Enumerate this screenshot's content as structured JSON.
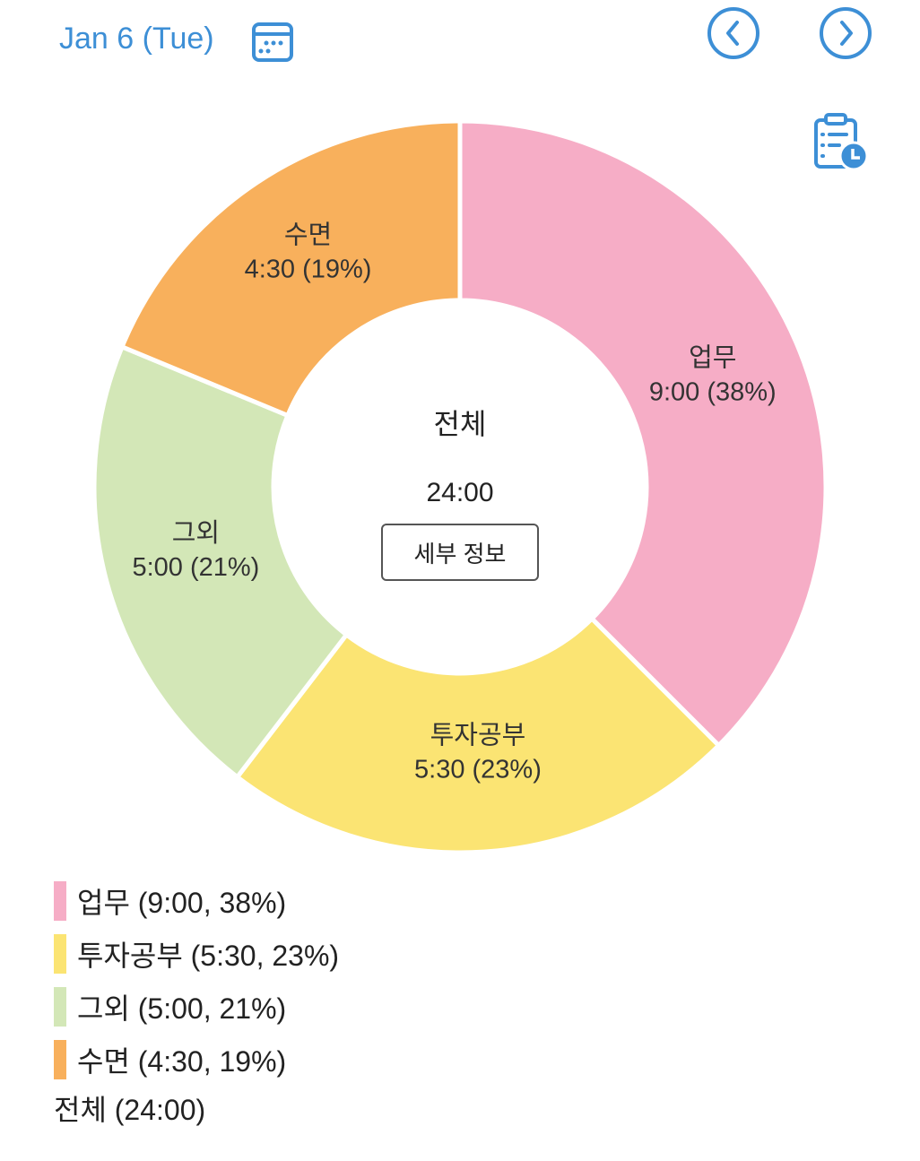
{
  "header": {
    "date": "Jan 6 (Tue)",
    "icons": [
      "calendar-icon",
      "chevron-left-circle-icon",
      "chevron-right-circle-icon",
      "clipboard-clock-icon"
    ],
    "accent": "#3d8fd6"
  },
  "chart_data": {
    "type": "pie",
    "donut": true,
    "slices": [
      {
        "label": "업무",
        "value": "9:00",
        "hours": 9,
        "percent": 38,
        "slice_label": "9:00 (38%)",
        "legend": "업무 (9:00, 38%)",
        "color": "#f6adc6"
      },
      {
        "label": "투자공부",
        "value": "5:30",
        "hours": 5.5,
        "percent": 23,
        "slice_label": "5:30 (23%)",
        "legend": "투자공부 (5:30, 23%)",
        "color": "#fbe473"
      },
      {
        "label": "그외",
        "value": "5:00",
        "hours": 5,
        "percent": 21,
        "slice_label": "5:00 (21%)",
        "legend": "그외 (5:00, 21%)",
        "color": "#d3e7b7"
      },
      {
        "label": "수면",
        "value": "4:30",
        "hours": 4.5,
        "percent": 19,
        "slice_label": "4:30 (19%)",
        "legend": "수면 (4:30, 19%)",
        "color": "#f8b05c"
      }
    ],
    "center": {
      "title": "전체",
      "total": "24:00",
      "button": "세부 정보"
    },
    "legend_total": "전체 (24:00)",
    "legend_placement": "bottom-left"
  }
}
